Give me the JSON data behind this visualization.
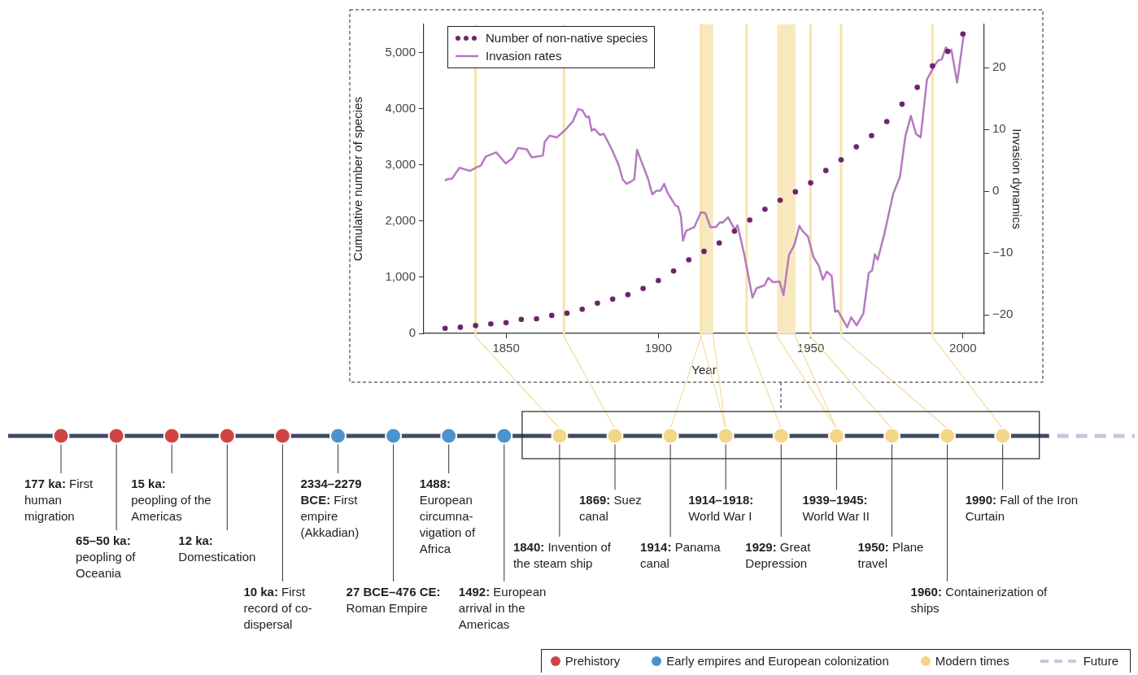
{
  "chart_data": [
    {
      "type": "line",
      "xlabel": "Year",
      "ylabel": "Cumulative number of species",
      "y2label": "Invasion dynamics",
      "xlim": [
        1823,
        2007
      ],
      "xticks": [
        1850,
        1900,
        1950,
        2000
      ],
      "ylim": [
        0,
        5500
      ],
      "yticks": [
        0,
        {
          "value": 1000,
          "label": "1,000"
        },
        {
          "value": 2000,
          "label": "2,000"
        },
        {
          "value": 3000,
          "label": "3,000"
        },
        {
          "value": 4000,
          "label": "4,000"
        },
        {
          "value": 5000,
          "label": "5,000"
        }
      ],
      "y2lim": [
        -23,
        27
      ],
      "y2ticks": [
        {
          "value": -20,
          "label": "−20"
        },
        {
          "value": -10,
          "label": "−10"
        },
        0,
        10,
        20
      ],
      "grid": false,
      "legend": "top left",
      "series": [
        {
          "name": "Number of non-native species",
          "type": "scatter",
          "marker": "circle",
          "color": "#6e246c",
          "x": [
            1830,
            1835,
            1840,
            1845,
            1850,
            1855,
            1860,
            1865,
            1870,
            1875,
            1880,
            1885,
            1890,
            1895,
            1900,
            1905,
            1910,
            1915,
            1920,
            1925,
            1930,
            1935,
            1940,
            1945,
            1950,
            1955,
            1960,
            1965,
            1970,
            1975,
            1980,
            1985,
            1990,
            1995,
            2000
          ],
          "values": [
            90,
            110,
            140,
            170,
            190,
            250,
            260,
            320,
            360,
            430,
            540,
            610,
            690,
            800,
            940,
            1110,
            1310,
            1460,
            1610,
            1820,
            2020,
            2210,
            2370,
            2520,
            2680,
            2900,
            3090,
            3320,
            3520,
            3770,
            4080,
            4380,
            4760,
            5020,
            5330
          ]
        },
        {
          "name": "Invasion rates",
          "type": "line",
          "marker": "none",
          "line_style": "solid",
          "axis": "y2",
          "color": "#b57ac0",
          "x": [
            1830.1,
            1831,
            1832.2,
            1834.7,
            1838.2,
            1840,
            1841.8,
            1843.3,
            1846.8,
            1849.9,
            1852.2,
            1853.9,
            1856.8,
            1858.4,
            1861.3,
            1862.1,
            1862.7,
            1864.3,
            1866.6,
            1869.2,
            1871.9,
            1873.7,
            1875.1,
            1876.3,
            1877.2,
            1878.1,
            1879,
            1880.8,
            1882.1,
            1884.8,
            1887,
            1888.3,
            1889.6,
            1892.1,
            1893,
            1894,
            1896.7,
            1898,
            1899.4,
            1900.7,
            1901.9,
            1903.1,
            1905.6,
            1906.5,
            1907.4,
            1908.1,
            1909.1,
            1911.8,
            1914,
            1915.4,
            1917.1,
            1918.9,
            1920.2,
            1921.1,
            1922.9,
            1925.1,
            1926,
            1928.2,
            1930.9,
            1932.2,
            1934.9,
            1936.1,
            1937.6,
            1939.8,
            1941.1,
            1942.9,
            1944.7,
            1946.3,
            1947.3,
            1949.1,
            1950.9,
            1952.7,
            1954,
            1955.3,
            1956.9,
            1958,
            1958.9,
            1962,
            1963.3,
            1965.1,
            1967.3,
            1969.1,
            1970.2,
            1971.1,
            1972,
            1974.2,
            1977.1,
            1979.3,
            1981.1,
            1982.9,
            1984.6,
            1986.1,
            1988.2,
            1990.4,
            1991.7,
            1993.1,
            1994.4,
            1995.3,
            1996.2,
            1998.1,
            2000.2
          ],
          "values": [
            1.8,
            2.0,
            2.0,
            3.8,
            3.3,
            3.8,
            4.2,
            5.6,
            6.3,
            4.5,
            5.4,
            7.0,
            6.8,
            5.5,
            5.7,
            5.8,
            8.0,
            9.0,
            8.7,
            9.8,
            11.3,
            13.3,
            13.1,
            12.0,
            12.1,
            9.8,
            10.1,
            9.1,
            9.3,
            6.7,
            4.2,
            1.9,
            1.2,
            1.9,
            6.7,
            5.4,
            1.9,
            -0.5,
            0.1,
            0.1,
            1.2,
            -0.3,
            -2.3,
            -2.5,
            -4.0,
            -8.0,
            -6.4,
            -5.8,
            -3.4,
            -3.5,
            -5.8,
            -5.8,
            -5.0,
            -5.1,
            -4.2,
            -6.2,
            -5.5,
            -10.2,
            -17.2,
            -15.7,
            -15.2,
            -14.0,
            -14.7,
            -14.6,
            -16.8,
            -10.3,
            -8.6,
            -5.6,
            -6.4,
            -7.3,
            -10.6,
            -12.1,
            -14.3,
            -13.0,
            -13.7,
            -19.5,
            -19.3,
            -22.0,
            -20.4,
            -21.7,
            -19.8,
            -13.2,
            -12.8,
            -10.2,
            -11.1,
            -6.9,
            -0.4,
            2.3,
            8.9,
            12.2,
            9.3,
            8.7,
            18.1,
            20.1,
            21.1,
            21.4,
            23.3,
            22.4,
            22.9,
            17.6,
            25.1
          ]
        }
      ],
      "ref_lines": [
        {
          "axis": "x",
          "value": 1840,
          "color": "#f7e3a8"
        },
        {
          "axis": "x",
          "value": 1869,
          "color": "#f7e3a8"
        },
        {
          "axis": "x",
          "value": 1914,
          "color": "#f7e3a8"
        },
        {
          "axis": "x",
          "value": 1929,
          "color": "#f7e3a8"
        },
        {
          "axis": "x",
          "value": 1950,
          "color": "#f7e3a8"
        },
        {
          "axis": "x",
          "value": 1960,
          "color": "#f7e3a8"
        },
        {
          "axis": "x",
          "value": 1990,
          "color": "#f7e3a8"
        }
      ],
      "bands": [
        {
          "axis": "x",
          "from": 1914,
          "to": 1918,
          "color": "#f8e8bd"
        },
        {
          "axis": "x",
          "from": 1939,
          "to": 1945,
          "color": "#f8e8bd"
        }
      ]
    },
    {
      "type": "other",
      "categories": [
        "177 ka: First human migration",
        "65–50 ka: peopling of Oceania",
        "15 ka: peopling of the Americas",
        "12 ka: Domestication",
        "10 ka: First record of co-dispersal",
        "2334–2279 BCE: First empire (Akkadian)",
        "27 BCE–476 CE: Roman Empire",
        "1488: European circumna-vigation of Africa",
        "1492: European arrival in the Americas",
        "1840: Invention of the steam ship",
        "1869: Suez canal",
        "1914: Panama canal",
        "1914–1918: World War I",
        "1929: Great Depression",
        "1939–1945: World War II",
        "1950: Plane travel",
        "1960: Containerization of ships",
        "1990: Fall of the Iron Curtain"
      ],
      "colors": [
        "#d04444",
        "#d04444",
        "#d04444",
        "#d04444",
        "#d04444",
        "#4b93cc",
        "#4b93cc",
        "#4b93cc",
        "#4b93cc",
        "#f3d687",
        "#f3d687",
        "#f3d687",
        "#f3d687",
        "#f3d687",
        "#f3d687",
        "#f3d687",
        "#f3d687",
        "#f3d687"
      ],
      "annotations": [
        "Prehistory",
        "Early empires and European colonization",
        "Modern times",
        "Future"
      ]
    }
  ]
}
